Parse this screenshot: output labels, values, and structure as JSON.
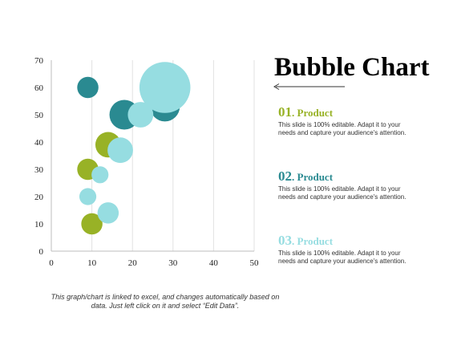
{
  "title": "Bubble Chart",
  "colors": {
    "green": "#98B226",
    "teal": "#2A8A91",
    "light": "#96DDE1",
    "grid": "#e2e2e2",
    "axis": "#bdbdbd"
  },
  "chart_data": {
    "type": "scatter",
    "subtype": "bubble",
    "title": "",
    "xlabel": "",
    "ylabel": "",
    "xlim": [
      0,
      50
    ],
    "ylim": [
      0,
      70
    ],
    "x_ticks": [
      0,
      10,
      20,
      30,
      40,
      50
    ],
    "y_ticks": [
      0,
      10,
      20,
      30,
      40,
      50,
      60,
      70
    ],
    "grid": "vertical",
    "series": [
      {
        "color": "#98B226",
        "points": [
          {
            "x": 9,
            "y": 30,
            "size": 5
          },
          {
            "x": 10,
            "y": 10,
            "size": 5
          },
          {
            "x": 14,
            "y": 39,
            "size": 6
          }
        ]
      },
      {
        "color": "#2A8A91",
        "points": [
          {
            "x": 9,
            "y": 60,
            "size": 5
          },
          {
            "x": 18,
            "y": 50,
            "size": 7
          },
          {
            "x": 28,
            "y": 53,
            "size": 7
          }
        ]
      },
      {
        "color": "#96DDE1",
        "points": [
          {
            "x": 9,
            "y": 20,
            "size": 4
          },
          {
            "x": 12,
            "y": 28,
            "size": 4
          },
          {
            "x": 14,
            "y": 14,
            "size": 5
          },
          {
            "x": 17,
            "y": 37,
            "size": 6
          },
          {
            "x": 22,
            "y": 50,
            "size": 6
          },
          {
            "x": 28,
            "y": 60,
            "size": 12
          }
        ]
      }
    ]
  },
  "legend": [
    {
      "number": "01",
      "name": "Product",
      "color": "#98B226",
      "desc": "This slide is 100% editable. Adapt it to your needs and capture your audience's attention."
    },
    {
      "number": "02",
      "name": "Product",
      "color": "#2A8A91",
      "desc": "This slide is 100% editable. Adapt it to your needs and capture your audience's attention."
    },
    {
      "number": "03",
      "name": "Product",
      "color": "#96DDE1",
      "desc": "This slide is 100% editable. Adapt it to your needs and capture your audience's attention."
    }
  ],
  "footnote": "This graph/chart is linked to excel, and changes automatically based on data. Just left click on it and select “Edit Data”."
}
